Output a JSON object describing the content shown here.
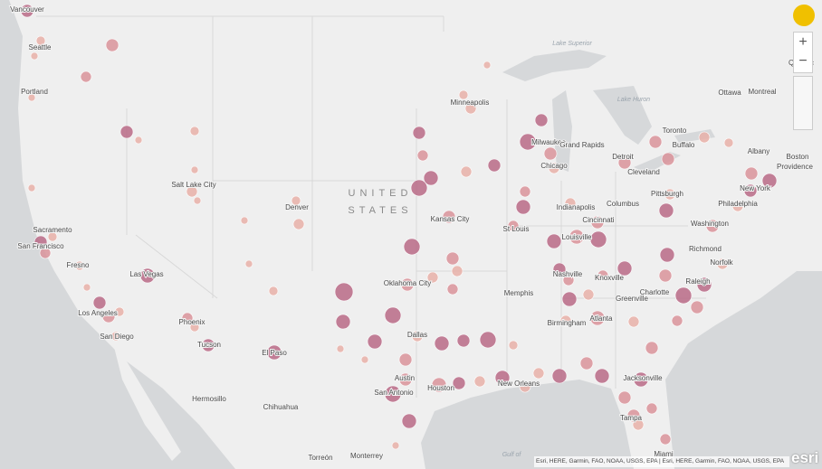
{
  "map": {
    "country_label": [
      "UNITED",
      "STATES"
    ],
    "water_labels": [
      "Lake Superior",
      "Lake Huron",
      "Gulf of"
    ],
    "cities": [
      "Vancouver",
      "Seattle",
      "Portland",
      "Sacramento",
      "San Francisco",
      "Fresno",
      "Las Vegas",
      "Los Angeles",
      "San Diego",
      "Salt Lake City",
      "Denver",
      "Phoenix",
      "Tucson",
      "El Paso",
      "Hermosillo",
      "Chihuahua",
      "Torreón",
      "Monterrey",
      "Oklahoma City",
      "Dallas",
      "Austin",
      "San Antonio",
      "Houston",
      "New Orleans",
      "Memphis",
      "Kansas City",
      "St Louis",
      "Minneapolis",
      "Milwaukee",
      "Chicago",
      "Grand Rapids",
      "Detroit",
      "Indianapolis",
      "Cincinnati",
      "Columbus",
      "Louisville",
      "Nashville",
      "Knoxville",
      "Birmingham",
      "Atlanta",
      "Greenville",
      "Charlotte",
      "Raleigh",
      "Cleveland",
      "Pittsburgh",
      "Buffalo",
      "Toronto",
      "Ottawa",
      "Montreal",
      "Quebec",
      "Albany",
      "Boston",
      "Providence",
      "New York",
      "Philadelphia",
      "Washington",
      "Richmond",
      "Norfolk",
      "Jacksonville",
      "Tampa",
      "Miami"
    ],
    "attribution": "Esri, HERE, Garmin, FAO, NOAA, USGS, EPA | Esri, HERE, Garmin, FAO, NOAA, USGS, EPA",
    "logo": "esri"
  }
}
